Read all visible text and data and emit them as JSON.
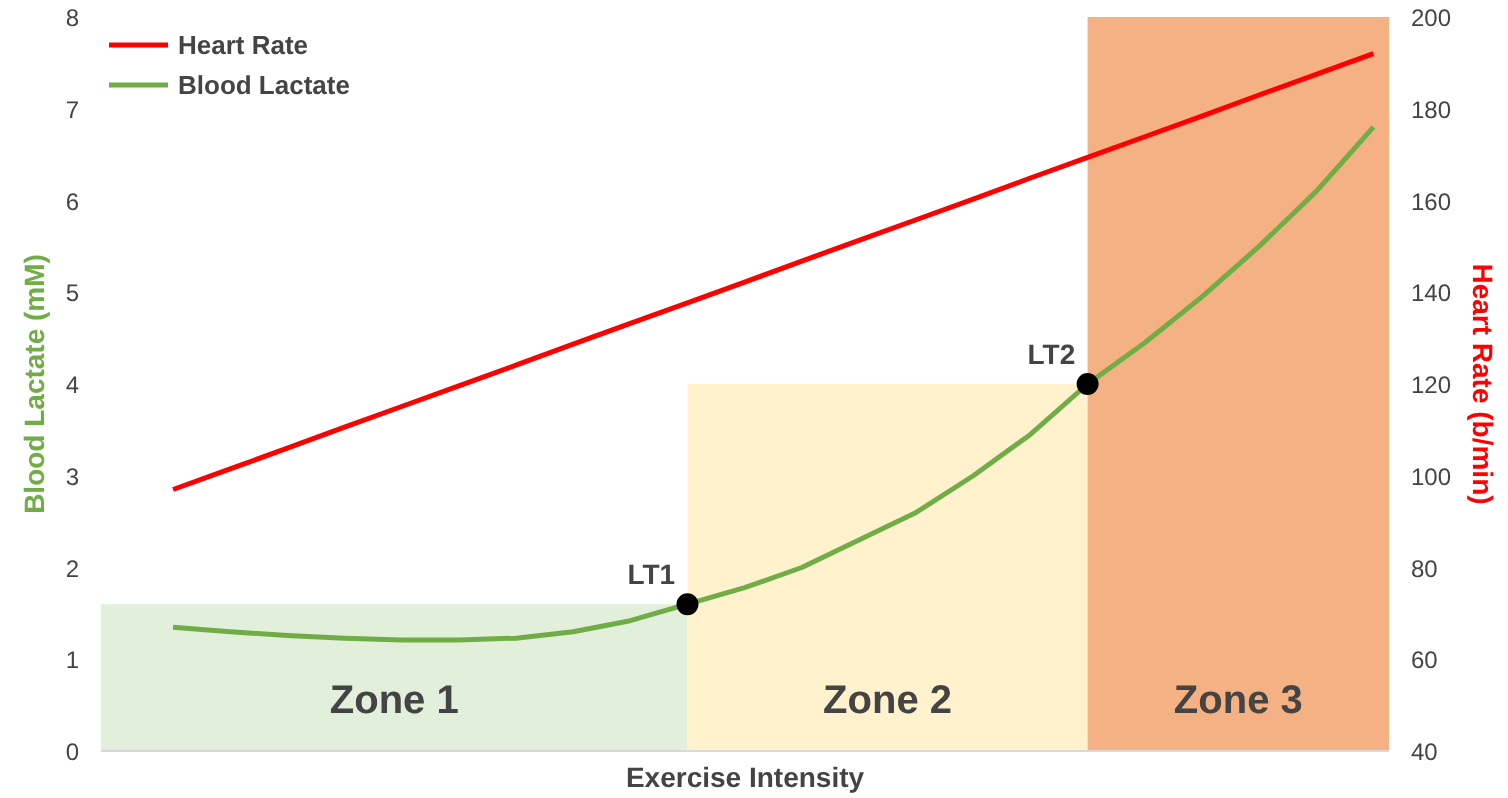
{
  "chart_data": {
    "type": "line",
    "xlabel": "Exercise Intensity",
    "ylabel": "Blood Lactate (mM)",
    "y2label": "Heart Rate (b/min)",
    "categories": [
      null,
      null,
      null,
      null,
      null,
      null,
      null,
      null,
      null,
      null,
      null,
      null,
      null,
      null,
      null,
      null,
      null,
      null,
      null,
      null,
      null,
      null
    ],
    "ylim": [
      0,
      8
    ],
    "yticks": [
      0,
      1,
      2,
      3,
      4,
      5,
      6,
      7,
      8
    ],
    "y2lim": [
      40,
      200
    ],
    "y2ticks": [
      40,
      60,
      80,
      100,
      120,
      140,
      160,
      180,
      200
    ],
    "tick_labels": "y",
    "grid": false,
    "legend": "top left",
    "line_style": "solid",
    "series": [
      {
        "name": "Heart Rate",
        "color": "#ff0000",
        "axis": "y2",
        "values": [
          97,
          101.5,
          106.0,
          110.6,
          115.1,
          119.6,
          124.1,
          128.7,
          133.2,
          137.7,
          142.2,
          146.8,
          151.3,
          155.8,
          160.3,
          164.9,
          169.4,
          173.9,
          178.4,
          183.0,
          187.5,
          192.0
        ]
      },
      {
        "name": "Blood Lactate",
        "color": "#70ad47",
        "values": [
          1.35,
          1.3,
          1.26,
          1.23,
          1.21,
          1.21,
          1.23,
          1.3,
          1.42,
          1.6,
          1.78,
          2.0,
          2.3,
          2.6,
          3.0,
          3.45,
          4.0,
          4.45,
          4.95,
          5.5,
          6.1,
          6.8
        ]
      },
      {
        "type": "scatter",
        "color": "#000000",
        "values": [
          null,
          null,
          null,
          null,
          null,
          null,
          null,
          null,
          null,
          1.6,
          null,
          null,
          null,
          null,
          null,
          null,
          4.0,
          null,
          null,
          null,
          null,
          null
        ]
      }
    ],
    "bands": [
      {
        "axis": "y",
        "from": 0,
        "to": 1.6,
        "label": "Zone 1",
        "color": "#e2efda"
      },
      {
        "axis": "y",
        "from": 0,
        "to": 4,
        "label": "Zone 2",
        "color": "#fff2cc"
      },
      {
        "axis": "y",
        "from": 0,
        "to": 8,
        "label": "Zone 3",
        "color": "#f4b183"
      }
    ],
    "annotations": [
      "LT1",
      "LT2"
    ]
  }
}
